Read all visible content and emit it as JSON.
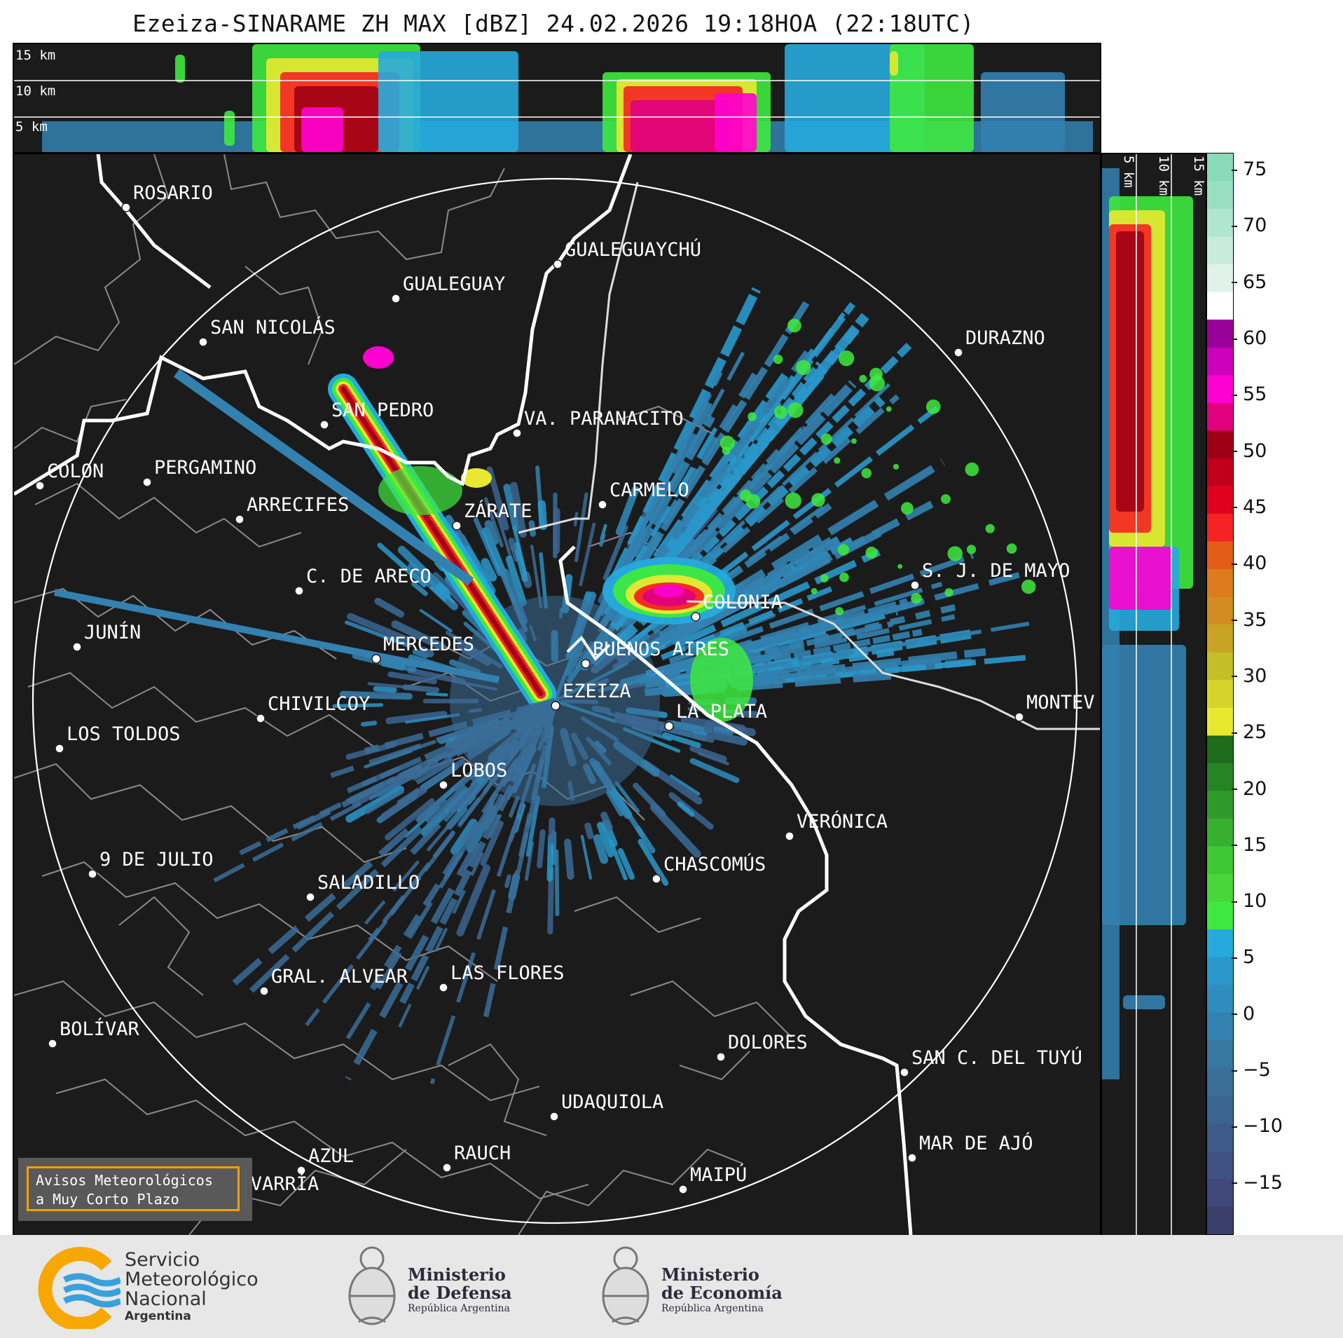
{
  "title": "Ezeiza-SINARAME ZH MAX [dBZ] 24.02.2026 19:18HOA (22:18UTC)",
  "top_panel": {
    "height_labels": [
      "15 km",
      "10 km",
      "5 km"
    ]
  },
  "side_panel": {
    "height_labels": [
      "5 km",
      "10 km",
      "15 km"
    ]
  },
  "colorbar": {
    "unit": "dBZ",
    "ticks": [
      "75",
      "70",
      "65",
      "60",
      "55",
      "50",
      "45",
      "40",
      "35",
      "30",
      "25",
      "20",
      "15",
      "10",
      "5",
      "0",
      "−5",
      "−10",
      "−15"
    ],
    "tick_values": [
      75,
      70,
      65,
      60,
      55,
      50,
      45,
      40,
      35,
      30,
      25,
      20,
      15,
      10,
      5,
      0,
      -5,
      -10,
      -15
    ],
    "range": [
      -19.5,
      76.5
    ],
    "colors": [
      "#3b3f6b",
      "#41497a",
      "#3f5283",
      "#3d5a8a",
      "#3b6491",
      "#3a6d98",
      "#38779f",
      "#3381b0",
      "#2e8cbf",
      "#2a98cb",
      "#26aadd",
      "#3ee93f",
      "#48d63b",
      "#3fc836",
      "#37b030",
      "#2f9a2a",
      "#268424",
      "#1c6c1c",
      "#e8e831",
      "#d6d42b",
      "#c4bf27",
      "#c9a324",
      "#d28c21",
      "#dd7a1c",
      "#e45d18",
      "#f52323",
      "#e0001f",
      "#c0001a",
      "#a00016",
      "#e0007e",
      "#ff00d0",
      "#cc00bb",
      "#9a009a",
      "#ffffff",
      "#e0f2ea",
      "#c8ecdc",
      "#b0e6cf",
      "#98e0c1",
      "#8adbb8"
    ]
  },
  "cities": [
    {
      "name": "ROSARIO"
    },
    {
      "name": "GUALEGUAYCHÚ"
    },
    {
      "name": "GUALEGUAY"
    },
    {
      "name": "SAN NICOLÁS"
    },
    {
      "name": "DURAZNO"
    },
    {
      "name": "SAN PEDRO"
    },
    {
      "name": "VA. PARANACITO"
    },
    {
      "name": "COLON"
    },
    {
      "name": "PERGAMINO"
    },
    {
      "name": "CARMELO"
    },
    {
      "name": "ARRECIFES"
    },
    {
      "name": "ZÁRATE"
    },
    {
      "name": "C. DE ARECO"
    },
    {
      "name": "S. J. DE MAYO"
    },
    {
      "name": "COLONIA"
    },
    {
      "name": "JUNÍN"
    },
    {
      "name": "BUENOS AIRES"
    },
    {
      "name": "MERCEDES"
    },
    {
      "name": "EZEIZA"
    },
    {
      "name": "MONTEV"
    },
    {
      "name": "CHIVILCOY"
    },
    {
      "name": "LA PLATA"
    },
    {
      "name": "LOS TOLDOS"
    },
    {
      "name": "LOBOS"
    },
    {
      "name": "VERÓNICA"
    },
    {
      "name": "9 DE JULIO"
    },
    {
      "name": "CHASCOMÚS"
    },
    {
      "name": "SALADILLO"
    },
    {
      "name": "GRAL. ALVEAR"
    },
    {
      "name": "LAS FLORES"
    },
    {
      "name": "BOLÍVAR"
    },
    {
      "name": "DOLORES"
    },
    {
      "name": "SAN C. DEL TUYÚ"
    },
    {
      "name": "UDAQUIOLA"
    },
    {
      "name": "MAR DE AJÓ"
    },
    {
      "name": "AZUL"
    },
    {
      "name": "RAUCH"
    },
    {
      "name": "OLAVARRÍA"
    },
    {
      "name": "MAIPÚ"
    }
  ],
  "notice": {
    "line1": "Avisos Meteorológicos",
    "line2": "a Muy Corto Plazo"
  },
  "logos": {
    "smn": {
      "line1": "Servicio",
      "line2": "Meteorológico",
      "line3": "Nacional",
      "line4": "Argentina"
    },
    "defensa": {
      "line1": "Ministerio",
      "line2": "de Defensa",
      "line3": "República Argentina"
    },
    "economia": {
      "line1": "Ministerio",
      "line2": "de Economía",
      "line3": "República Argentina"
    }
  }
}
